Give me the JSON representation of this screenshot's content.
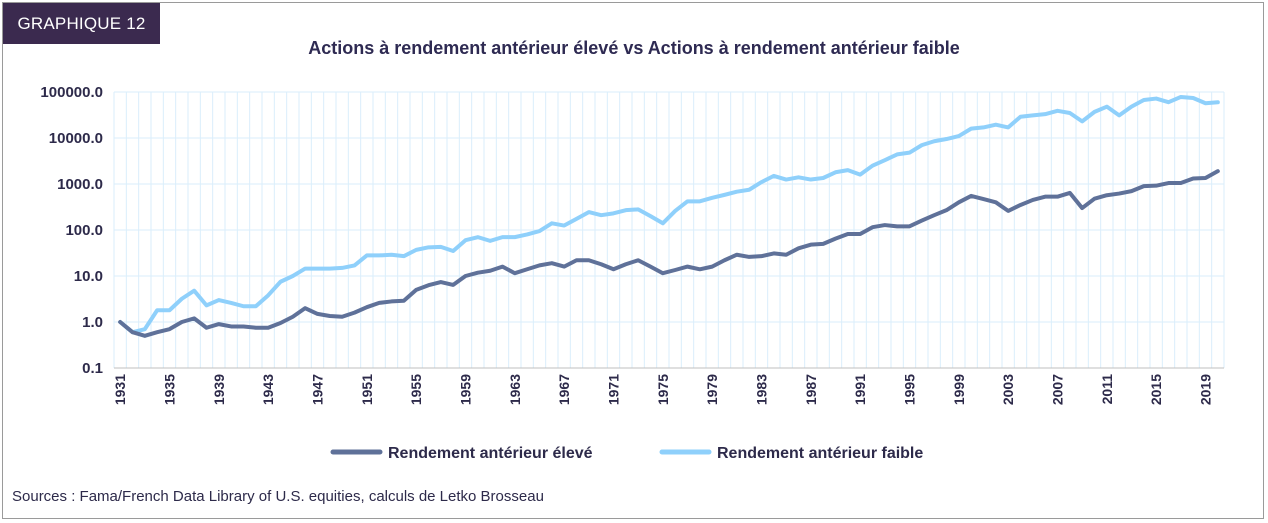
{
  "badge": "GRAPHIQUE 12",
  "source": "Sources : Fama/French Data Library of U.S. equities, calculs de Letko Brosseau",
  "chart_data": {
    "type": "line",
    "title": "Actions à rendement antérieur élevé vs Actions à rendement antérieur faible",
    "xlabel": "",
    "ylabel": "",
    "y_scale": "log",
    "ylim": [
      0.1,
      100000
    ],
    "y_ticks": [
      "100000.0",
      "10000.0",
      "1000.0",
      "100.0",
      "10.0",
      "1.0",
      "0.1"
    ],
    "x_ticks": [
      "1931",
      "1935",
      "1939",
      "1943",
      "1947",
      "1951",
      "1955",
      "1959",
      "1963",
      "1967",
      "1971",
      "1975",
      "1979",
      "1983",
      "1987",
      "1991",
      "1995",
      "1999",
      "2003",
      "2007",
      "2011",
      "2015",
      "2019"
    ],
    "x_range": [
      1931,
      2020
    ],
    "grid": true,
    "legend_position": "bottom",
    "colors": {
      "high": "#5f7199",
      "low": "#8fd0fb"
    },
    "x": [
      1931,
      1932,
      1933,
      1934,
      1935,
      1936,
      1937,
      1938,
      1939,
      1940,
      1941,
      1942,
      1943,
      1944,
      1945,
      1946,
      1947,
      1948,
      1949,
      1950,
      1951,
      1952,
      1953,
      1954,
      1955,
      1956,
      1957,
      1958,
      1959,
      1960,
      1961,
      1962,
      1963,
      1964,
      1965,
      1966,
      1967,
      1968,
      1969,
      1970,
      1971,
      1972,
      1973,
      1974,
      1975,
      1976,
      1977,
      1978,
      1979,
      1980,
      1981,
      1982,
      1983,
      1984,
      1985,
      1986,
      1987,
      1988,
      1989,
      1990,
      1991,
      1992,
      1993,
      1994,
      1995,
      1996,
      1997,
      1998,
      1999,
      2000,
      2001,
      2002,
      2003,
      2004,
      2005,
      2006,
      2007,
      2008,
      2009,
      2010,
      2011,
      2012,
      2013,
      2014,
      2015,
      2016,
      2017,
      2018,
      2019,
      2020
    ],
    "series": [
      {
        "name": "Rendement antérieur élevé",
        "values": [
          1.0,
          0.6,
          0.5,
          0.6,
          0.7,
          1.0,
          1.2,
          0.75,
          0.9,
          0.8,
          0.8,
          0.75,
          0.75,
          0.95,
          1.3,
          2.0,
          1.5,
          1.35,
          1.3,
          1.6,
          2.1,
          2.6,
          2.8,
          2.9,
          5.0,
          6.3,
          7.4,
          6.4,
          10.0,
          11.8,
          13.0,
          16.0,
          11.5,
          14.0,
          17.0,
          19.0,
          16.0,
          22.0,
          22.0,
          18.0,
          14.0,
          18.0,
          22.0,
          16.0,
          11.5,
          13.5,
          16.0,
          14.0,
          16.0,
          22.0,
          29.0,
          26.0,
          27.0,
          31.0,
          29.0,
          40.0,
          48.0,
          50.0,
          65.0,
          82.0,
          82.0,
          115.0,
          128.0,
          120.0,
          120.0,
          160.0,
          210.0,
          270.0,
          400.0,
          550.0,
          470.0,
          400.0,
          260.0,
          350.0,
          450.0,
          530.0,
          530.0,
          640.0,
          300.0,
          480.0,
          570.0,
          620.0,
          700.0,
          900.0,
          920.0,
          1050.0,
          1050.0,
          1320.0,
          1350.0,
          1900.0
        ]
      },
      {
        "name": "Rendement antérieur faible",
        "values": [
          1.0,
          0.6,
          0.7,
          1.8,
          1.8,
          3.2,
          4.8,
          2.3,
          3.0,
          2.6,
          2.2,
          2.2,
          3.8,
          7.5,
          10.0,
          14.5,
          14.5,
          14.5,
          15.0,
          17.0,
          28.0,
          28.0,
          29.0,
          27.0,
          37.0,
          42.0,
          43.0,
          35.0,
          60.0,
          70.0,
          58.0,
          70.0,
          70.0,
          80.0,
          95.0,
          140.0,
          125.0,
          175.0,
          245.0,
          210.0,
          230.0,
          270.0,
          280.0,
          200.0,
          140.0,
          260.0,
          420.0,
          420.0,
          500.0,
          580.0,
          680.0,
          750.0,
          1100.0,
          1500.0,
          1250.0,
          1400.0,
          1250.0,
          1350.0,
          1800.0,
          2000.0,
          1600.0,
          2500.0,
          3300.0,
          4400.0,
          4800.0,
          7000.0,
          8500.0,
          9500.0,
          11000.0,
          16000.0,
          17000.0,
          19500.0,
          17000.0,
          29000.0,
          31000.0,
          33000.0,
          39000.0,
          35000.0,
          23000.0,
          37000.0,
          48000.0,
          31000.0,
          48000.0,
          67000.0,
          72000.0,
          60000.0,
          78000.0,
          74000.0,
          57000.0,
          60000.0
        ]
      }
    ]
  }
}
